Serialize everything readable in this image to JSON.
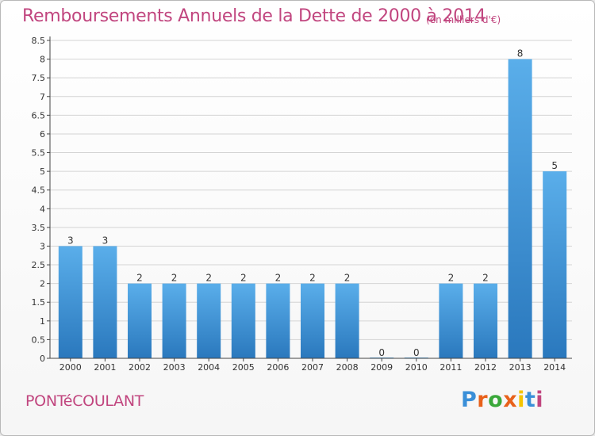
{
  "title": "Remboursements Annuels de la Dette de 2000 à 2014",
  "subtitle": "(en milliers d'€)",
  "commune": "PONTéCOULANT",
  "logo": {
    "text": "Proxiti",
    "letter_colors": [
      "#3a8fd8",
      "#e8611a",
      "#3aa83a",
      "#e8611a",
      "#f5c400",
      "#3a8fd8",
      "#c1467f"
    ]
  },
  "colors": {
    "title": "#c1467f",
    "bar_top": "#5aaeea",
    "bar_bottom": "#2a78bd",
    "grid": "#d4d4d4",
    "axis": "#444444"
  },
  "chart_data": {
    "type": "bar",
    "title": "Remboursements Annuels de la Dette de 2000 à 2014",
    "subtitle": "(en milliers d'€)",
    "categories": [
      "2000",
      "2001",
      "2002",
      "2003",
      "2004",
      "2005",
      "2006",
      "2007",
      "2008",
      "2009",
      "2010",
      "2011",
      "2012",
      "2013",
      "2014"
    ],
    "values": [
      3,
      3,
      2,
      2,
      2,
      2,
      2,
      2,
      2,
      0,
      0,
      2,
      2,
      8,
      5
    ],
    "data_labels": [
      "3",
      "3",
      "2",
      "2",
      "2",
      "2",
      "2",
      "2",
      "2",
      "0",
      "0",
      "2",
      "2",
      "8",
      "5"
    ],
    "y_ticks": [
      "0",
      "0.5",
      "1",
      "1.5",
      "2",
      "2.5",
      "3",
      "3.5",
      "4",
      "4.5",
      "5",
      "5.5",
      "6",
      "6.5",
      "7",
      "7.5",
      "8",
      "8.5"
    ],
    "ylim": [
      0,
      8.5
    ],
    "grid": true,
    "legend": "none"
  }
}
